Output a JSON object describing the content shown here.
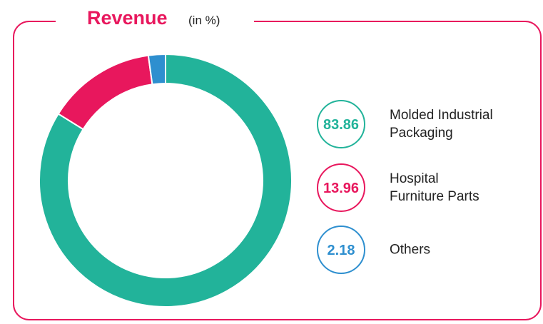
{
  "chart_data": {
    "type": "donut",
    "title": "Revenue",
    "subtitle": "(in %)",
    "categories": [
      "Molded Industrial\nPackaging",
      "Hospital\nFurniture Parts",
      "Others"
    ],
    "values": [
      83.86,
      13.96,
      2.18
    ],
    "colors": [
      "#22b39a",
      "#e8175d",
      "#2e8fcf"
    ],
    "legend": "right"
  }
}
